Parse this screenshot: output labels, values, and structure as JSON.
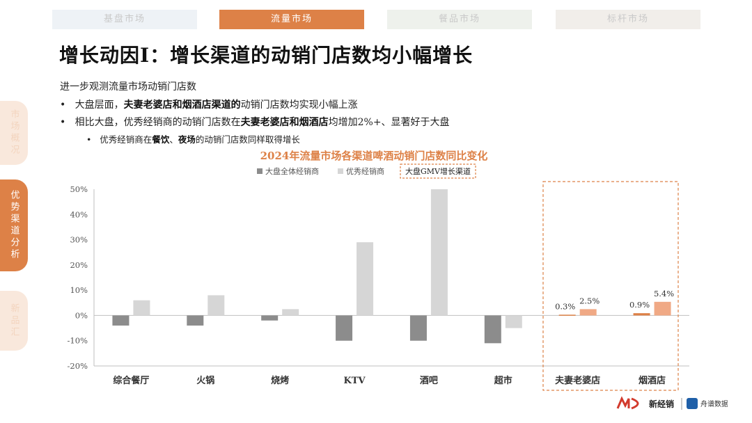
{
  "tabs": [
    {
      "label": "基盘市场"
    },
    {
      "label": "流量市场"
    },
    {
      "label": "餐品市场"
    },
    {
      "label": "标杆市场"
    }
  ],
  "side_nav": [
    {
      "label": "市场概况"
    },
    {
      "label": "优势渠道分析"
    },
    {
      "label": "新品汇"
    }
  ],
  "title": "增长动因I：增长渠道的动销门店数均小幅增长",
  "intro": "进一步观测流量市场动销门店数",
  "bullet1": {
    "pre": "大盘层面，",
    "bold": "夫妻老婆店和烟酒店渠道的",
    "post": "动销门店数均实现小幅上涨"
  },
  "bullet2": {
    "pre": "相比大盘，优秀经销商的动销门店数在",
    "bold": "夫妻老婆店和烟酒店",
    "post": "均增加2%+、显著好于大盘"
  },
  "bullet3": {
    "pre": "优秀经销商在",
    "bold1": "餐饮",
    "mid": "、",
    "bold2": "夜场",
    "post": "的动销门店数同样取得增长"
  },
  "brand": {
    "left": "新经销",
    "right": "舟谱数据"
  },
  "colors": {
    "dark_bar": "#8c8c8c",
    "light_bar": "#d6d6d6",
    "accent": "#dd8147",
    "accent_bar": "#f0a985"
  },
  "chart_data": {
    "type": "bar",
    "title": "2024年流量市场各渠道啤酒动销门店数同比变化",
    "categories": [
      "综合餐厅",
      "火锅",
      "烧烤",
      "KTV",
      "酒吧",
      "超市",
      "夫妻老婆店",
      "烟酒店"
    ],
    "series": [
      {
        "name": "大盘全体经销商",
        "values": [
          -0.04,
          -0.04,
          -0.02,
          -0.1,
          -0.1,
          -0.11,
          0.003,
          0.009
        ]
      },
      {
        "name": "优秀经销商",
        "values": [
          0.06,
          0.08,
          0.025,
          0.29,
          0.5,
          -0.05,
          0.025,
          0.054
        ]
      }
    ],
    "legend_extra": "大盘GMV增长渠道",
    "highlight_categories": [
      "夫妻老婆店",
      "烟酒店"
    ],
    "data_labels": {
      "夫妻老婆店": [
        "0.3%",
        "2.5%"
      ],
      "烟酒店": [
        "0.9%",
        "5.4%"
      ]
    },
    "yticks": [
      "50%",
      "40%",
      "30%",
      "20%",
      "10%",
      "0%",
      "-10%",
      "-20%"
    ],
    "ylim": [
      -0.2,
      0.5
    ]
  }
}
